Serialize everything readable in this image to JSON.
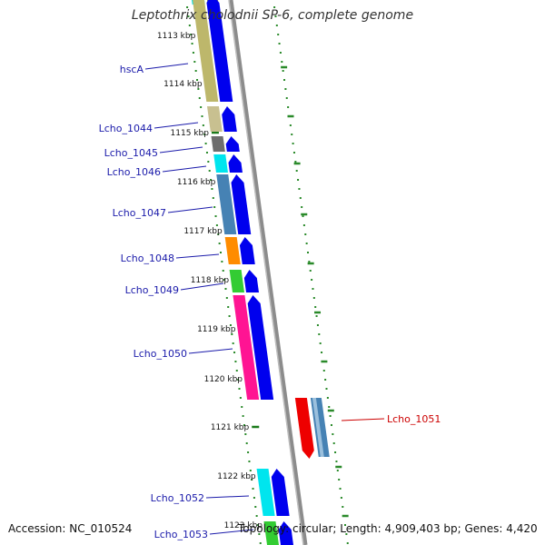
{
  "title": "Leptothrix cholodnii SP-6, complete genome",
  "footer": {
    "accession": "Accession: NC_010524",
    "topology": "Topology: circular; Length: 4,909,403 bp; Genes: 4,420"
  },
  "colors": {
    "backbone": "#8c8c8c",
    "cds_forward": "#0000ee",
    "cds_reverse": "#ee0000",
    "tick_green": "#2a8a2a",
    "label_forward": "#1a1aaa",
    "label_reverse": "#cc0000"
  },
  "ruler": [
    {
      "label": "1113 kbp"
    },
    {
      "label": "1114 kbp"
    },
    {
      "label": "1115 kbp"
    },
    {
      "label": "1116 kbp"
    },
    {
      "label": "1117 kbp"
    },
    {
      "label": "1118 kbp"
    },
    {
      "label": "1119 kbp"
    },
    {
      "label": "1120 kbp"
    },
    {
      "label": "1121 kbp"
    },
    {
      "label": "1122 kbp"
    },
    {
      "label": "1123 kbp"
    }
  ],
  "genes": [
    {
      "name": "hscA",
      "strand": "forward",
      "color": "#bdb76b"
    },
    {
      "name": "Lcho_1044",
      "strand": "forward",
      "color": "#c8c090"
    },
    {
      "name": "Lcho_1045",
      "strand": "forward",
      "color": "#6e6e6e"
    },
    {
      "name": "Lcho_1046",
      "strand": "forward",
      "color": "#00e5ee"
    },
    {
      "name": "Lcho_1047",
      "strand": "forward",
      "color": "#4682b4"
    },
    {
      "name": "Lcho_1048",
      "strand": "forward",
      "color": "#ff8c00"
    },
    {
      "name": "Lcho_1049",
      "strand": "forward",
      "color": "#33cc33"
    },
    {
      "name": "Lcho_1050",
      "strand": "forward",
      "color": "#ff1493"
    },
    {
      "name": "Lcho_1051",
      "strand": "reverse",
      "color": "#4682b4"
    },
    {
      "name": "Lcho_1052",
      "strand": "forward",
      "color": "#00e5ee"
    },
    {
      "name": "Lcho_1053",
      "strand": "forward",
      "color": "#33cc33"
    }
  ]
}
